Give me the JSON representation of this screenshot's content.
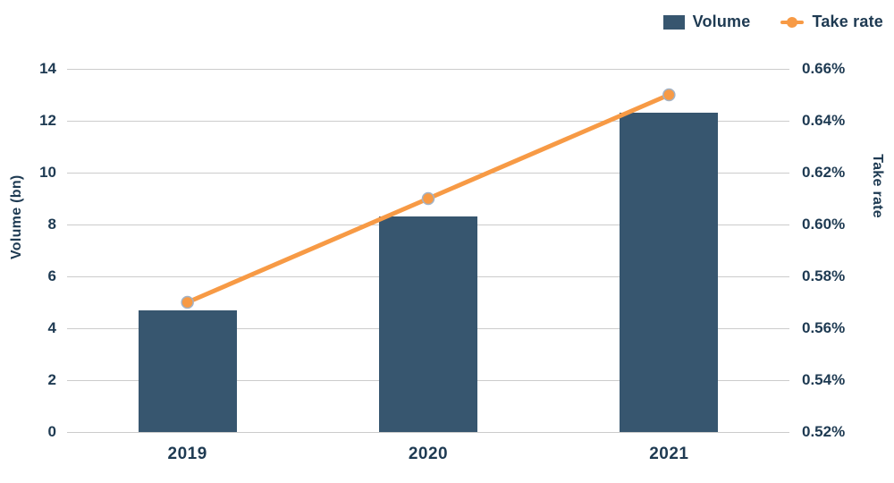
{
  "chart_data": {
    "type": "combo-bar-line",
    "categories": [
      "2019",
      "2020",
      "2021"
    ],
    "series": [
      {
        "name": "Volume",
        "type": "bar",
        "axis": "left",
        "values": [
          4.7,
          8.3,
          12.3
        ]
      },
      {
        "name": "Take rate",
        "type": "line",
        "axis": "right",
        "values": [
          0.57,
          0.61,
          0.65
        ],
        "unit": "%"
      }
    ],
    "left_axis": {
      "label": "Volume (bn)",
      "min": 0,
      "max": 14,
      "step": 2,
      "ticks": [
        "0",
        "2",
        "4",
        "6",
        "8",
        "10",
        "12",
        "14"
      ]
    },
    "right_axis": {
      "label": "Take rate",
      "min": 0.52,
      "max": 0.66,
      "step": 0.02,
      "ticks": [
        "0.52%",
        "0.54%",
        "0.56%",
        "0.58%",
        "0.60%",
        "0.62%",
        "0.64%",
        "0.66%"
      ]
    },
    "legend": {
      "position": "top-right",
      "items": [
        {
          "label": "Volume",
          "swatch": "square"
        },
        {
          "label": "Take rate",
          "swatch": "line-dot"
        }
      ]
    },
    "grid": true,
    "colors": {
      "bar": "#37566F",
      "line": "#F79A45",
      "marker_stroke": "#A3B3C6",
      "text": "#1E3A52",
      "grid": "#CCCCCC",
      "background": "#FFFFFF"
    }
  }
}
